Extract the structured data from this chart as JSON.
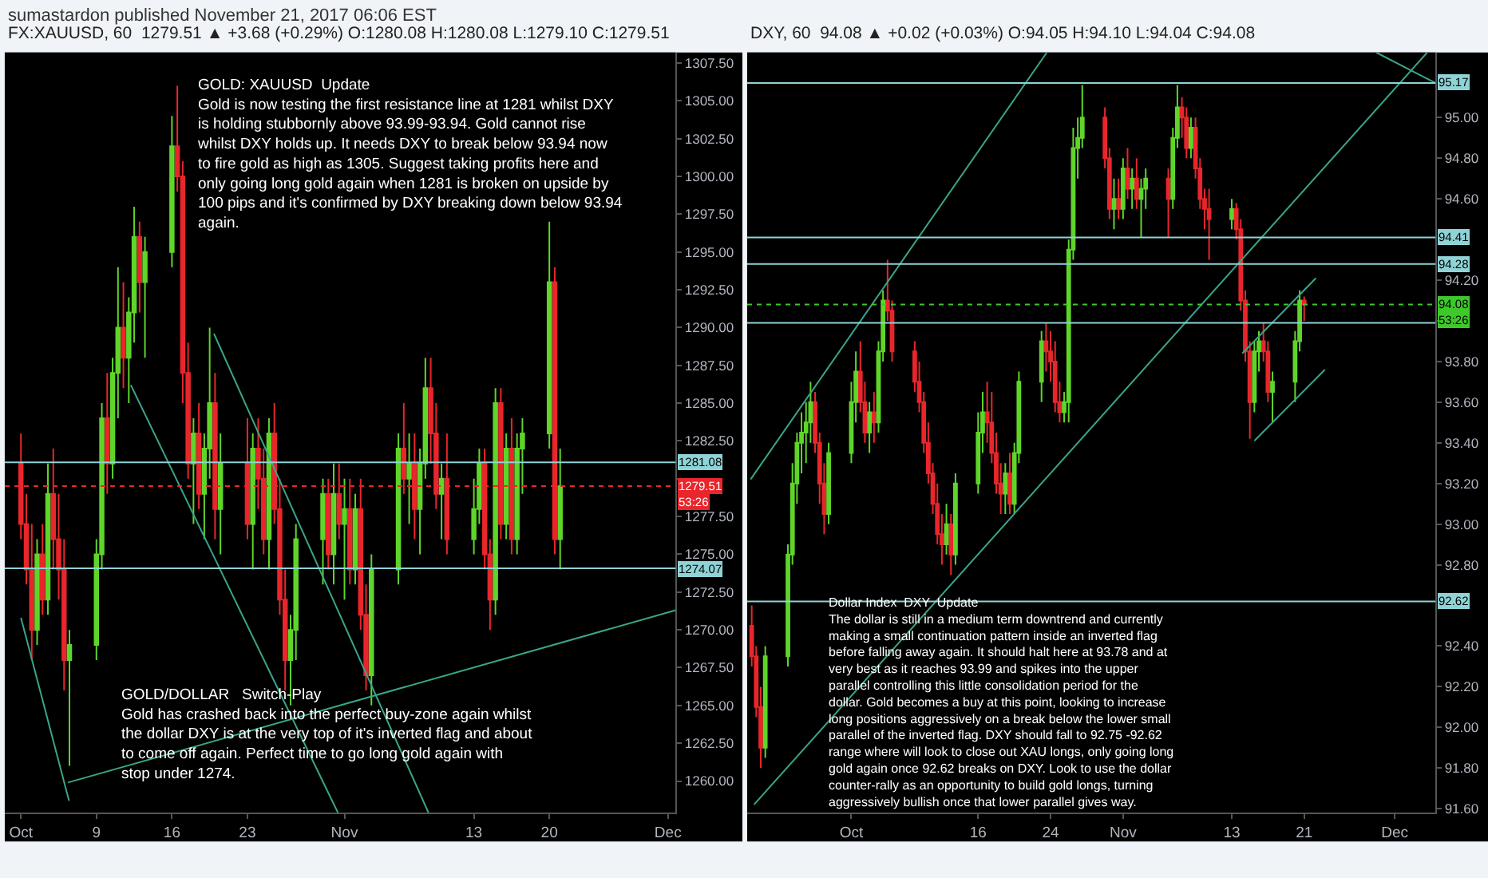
{
  "chart_data": [
    {
      "type": "candlestick",
      "title": "FX:XAUUSD, 60  1279.51 ▲ +3.68 (+0.29%) O:1280.08 H:1280.08 L:1279.10 C:1279.51",
      "annotations": [
        "sumastardon published November 21, 2017 06:06 EST",
        "GOLD: XAUUSD  Update\nGold is now testing the first resistance line at 1281 whilst DXY\nis holding stubbornly above 93.99-93.94. Gold cannot rise\nwhilst DXY holds up. It needs DXY to break below 93.94 now\nto fire gold as high as 1305. Suggest taking profits here and\nonly going long gold again when 1281 is broken on upside by\n100 pips and it's confirmed by DXY breaking down below 93.94\nagain.",
        "GOLD/DOLLAR   Switch-Play\nGold has crashed back into the perfect buy-zone again whilst\nthe dollar DXY is at the very top of it's inverted flag and about\nto come off again. Perfect time to go long gold again with\nstop under 1274.",
        "53:26"
      ],
      "xlim": [
        "2017-09-30T12:00",
        "2017-12-01T17:00"
      ],
      "xticks": [
        {
          "value": "2017-10-02",
          "label": "Oct"
        },
        {
          "value": "2017-10-09",
          "label": "9"
        },
        {
          "value": "2017-10-16",
          "label": "16"
        },
        {
          "value": "2017-10-23",
          "label": "23"
        },
        {
          "value": "2017-11-01",
          "label": "Nov"
        },
        {
          "value": "2017-11-13",
          "label": "13"
        },
        {
          "value": "2017-11-20",
          "label": "20"
        },
        {
          "value": "2017-12-01",
          "label": "Dec"
        }
      ],
      "ylim": [
        1257.9,
        1308.2
      ],
      "yticks": [
        {
          "value": 1260,
          "label": "1260.00"
        },
        {
          "value": 1262.5,
          "label": "1262.50"
        },
        {
          "value": 1265,
          "label": "1265.00"
        },
        {
          "value": 1267.5,
          "label": "1267.50"
        },
        {
          "value": 1270,
          "label": "1270.00"
        },
        {
          "value": 1272.5,
          "label": "1272.50"
        },
        {
          "value": 1275,
          "label": "1275.00"
        },
        {
          "value": 1277.5,
          "label": "1277.50"
        },
        {
          "value": 1280,
          "label": null
        },
        {
          "value": 1282.5,
          "label": "1282.50"
        },
        {
          "value": 1285,
          "label": "1285.00"
        },
        {
          "value": 1287.5,
          "label": "1287.50"
        },
        {
          "value": 1290,
          "label": "1290.00"
        },
        {
          "value": 1292.5,
          "label": "1292.50"
        },
        {
          "value": 1295,
          "label": "1295.00"
        },
        {
          "value": 1297.5,
          "label": "1297.50"
        },
        {
          "value": 1300,
          "label": "1300.00"
        },
        {
          "value": 1302.5,
          "label": "1302.50"
        },
        {
          "value": 1305,
          "label": "1305.00"
        },
        {
          "value": 1307.5,
          "label": "1307.50"
        }
      ],
      "ref_lines": [
        {
          "axis": "y",
          "value": 1281.08,
          "label": "1281.08",
          "color": "#8fd3d6"
        },
        {
          "axis": "y",
          "value": 1279.51,
          "label": "1279.51",
          "color": "#e8262b",
          "line_style": "dotted"
        },
        {
          "axis": "y",
          "value": 1274.07,
          "label": "1274.07",
          "color": "#8fd3d6"
        }
      ],
      "series": [
        {
          "type": "line",
          "color": "#3aa58a",
          "x": [
            "2017-10-02T00:00",
            "2017-10-06T11:00"
          ],
          "values": [
            1270.8,
            1258.7
          ]
        },
        {
          "type": "line",
          "color": "#3aa58a",
          "x": [
            "2017-10-12T04:30",
            "2017-10-31T09:30"
          ],
          "values": [
            1286.2,
            1257.9
          ]
        },
        {
          "type": "line",
          "color": "#3aa58a",
          "x": [
            "2017-10-19T21:30",
            "2017-11-08T19:00"
          ],
          "values": [
            1289.6,
            1257.9
          ]
        },
        {
          "type": "line",
          "color": "#3aa58a",
          "x": [
            "2017-10-06T08:40",
            "2017-12-01T17:00"
          ],
          "values": [
            1259.9,
            1271.3
          ]
        },
        {
          "colors": [
            "#e8262b",
            "#e8262b",
            "#e8262b",
            "#5fd52a",
            "#e8262b",
            "#5fd52a",
            "#e8262b",
            "#e8262b",
            "#e8262b",
            "#5fd52a",
            "#5fd52a",
            "#5fd52a",
            "#e8262b",
            "#5fd52a",
            "#5fd52a",
            "#e8262b",
            "#5fd52a",
            "#5fd52a",
            "#e8262b",
            "#5fd52a",
            "#5fd52a",
            "#e8262b",
            "#e8262b",
            "#e8262b",
            "#5fd52a",
            "#e8262b",
            "#5fd52a",
            "#5fd52a",
            "#e8262b",
            "#5fd52a",
            "#e8262b",
            "#5fd52a",
            "#e8262b",
            "#e8262b",
            "#5fd52a",
            "#e8262b",
            "#e8262b",
            "#e8262b",
            "#5fd52a",
            "#5fd52a",
            "#5fd52a",
            "#e8262b",
            "#5fd52a",
            "#e8262b",
            "#5fd52a",
            "#e8262b",
            "#5fd52a",
            "#e8262b",
            "#e8262b",
            "#5fd52a",
            "#5fd52a",
            "#e8262b",
            "#5fd52a",
            "#e8262b",
            "#5fd52a",
            "#5fd52a",
            "#e8262b",
            "#e8262b",
            "#5fd52a",
            "#e8262b",
            "#5fd52a",
            "#5fd52a",
            "#e8262b",
            "#e8262b",
            "#5fd52a",
            "#e8262b",
            "#5fd52a",
            "#e8262b",
            "#5fd52a",
            "#5fd52a",
            "#5fd52a",
            "#e8262b",
            "#5fd52a"
          ],
          "x": [
            "2017-10-02T00:00",
            "2017-10-02T12:00",
            "2017-10-03T00:00",
            "2017-10-03T12:00",
            "2017-10-04T00:00",
            "2017-10-04T12:00",
            "2017-10-05T00:00",
            "2017-10-05T12:00",
            "2017-10-06T00:00",
            "2017-10-06T12:00",
            "2017-10-09T00:00",
            "2017-10-09T12:00",
            "2017-10-10T00:00",
            "2017-10-10T12:00",
            "2017-10-11T00:00",
            "2017-10-11T12:00",
            "2017-10-12T00:00",
            "2017-10-12T12:00",
            "2017-10-13T00:00",
            "2017-10-13T12:00",
            "2017-10-16T00:00",
            "2017-10-16T12:00",
            "2017-10-17T00:00",
            "2017-10-17T12:00",
            "2017-10-18T00:00",
            "2017-10-18T12:00",
            "2017-10-19T00:00",
            "2017-10-19T12:00",
            "2017-10-20T00:00",
            "2017-10-20T12:00",
            "2017-10-23T00:00",
            "2017-10-23T12:00",
            "2017-10-24T00:00",
            "2017-10-24T12:00",
            "2017-10-25T00:00",
            "2017-10-25T12:00",
            "2017-10-26T00:00",
            "2017-10-26T12:00",
            "2017-10-27T00:00",
            "2017-10-27T12:00",
            "2017-10-30T00:00",
            "2017-10-30T12:00",
            "2017-10-31T00:00",
            "2017-10-31T12:00",
            "2017-11-01T00:00",
            "2017-11-01T12:00",
            "2017-11-02T00:00",
            "2017-11-02T12:00",
            "2017-11-03T00:00",
            "2017-11-03T12:00",
            "2017-11-06T00:00",
            "2017-11-06T12:00",
            "2017-11-07T00:00",
            "2017-11-07T12:00",
            "2017-11-08T00:00",
            "2017-11-08T12:00",
            "2017-11-09T00:00",
            "2017-11-09T12:00",
            "2017-11-10T00:00",
            "2017-11-10T12:00",
            "2017-11-13T00:00",
            "2017-11-13T12:00",
            "2017-11-14T00:00",
            "2017-11-14T12:00",
            "2017-11-15T00:00",
            "2017-11-15T12:00",
            "2017-11-16T00:00",
            "2017-11-16T12:00",
            "2017-11-17T00:00",
            "2017-11-17T12:00",
            "2017-11-20T00:00",
            "2017-11-20T12:00",
            "2017-11-21T00:00"
          ],
          "ohlc": [
            [
              1281,
              1283,
              1276,
              1277
            ],
            [
              1277,
              1279,
              1273,
              1274
            ],
            [
              1274,
              1277,
              1268,
              1270
            ],
            [
              1270,
              1276,
              1269,
              1275
            ],
            [
              1275,
              1277,
              1271,
              1272
            ],
            [
              1272,
              1281,
              1271,
              1279
            ],
            [
              1279,
              1282,
              1274,
              1276
            ],
            [
              1276,
              1279,
              1272,
              1274
            ],
            [
              1274,
              1276,
              1266,
              1268
            ],
            [
              1268,
              1270,
              1261,
              1269
            ],
            [
              1269,
              1276,
              1268,
              1275
            ],
            [
              1275,
              1285,
              1274,
              1284
            ],
            [
              1284,
              1287,
              1279,
              1281
            ],
            [
              1281,
              1288,
              1280,
              1287
            ],
            [
              1287,
              1294,
              1284,
              1290
            ],
            [
              1290,
              1293,
              1286,
              1288
            ],
            [
              1288,
              1292,
              1285,
              1291
            ],
            [
              1291,
              1298,
              1289,
              1296
            ],
            [
              1296,
              1297,
              1291,
              1293
            ],
            [
              1293,
              1296,
              1288,
              1295
            ],
            [
              1295,
              1304,
              1294,
              1302
            ],
            [
              1302,
              1306,
              1299,
              1300
            ],
            [
              1300,
              1301,
              1285,
              1287
            ],
            [
              1287,
              1289,
              1280,
              1281
            ],
            [
              1281,
              1284,
              1277,
              1283
            ],
            [
              1283,
              1285,
              1278,
              1279
            ],
            [
              1279,
              1283,
              1276,
              1282
            ],
            [
              1282,
              1290,
              1280,
              1285
            ],
            [
              1285,
              1287,
              1276,
              1278
            ],
            [
              1278,
              1283,
              1275,
              1281
            ],
            [
              1281,
              1284,
              1276,
              1277
            ],
            [
              1277,
              1283,
              1274,
              1282
            ],
            [
              1282,
              1284,
              1278,
              1280
            ],
            [
              1280,
              1282,
              1275,
              1276
            ],
            [
              1276,
              1284,
              1274,
              1283
            ],
            [
              1283,
              1285,
              1277,
              1278
            ],
            [
              1278,
              1280,
              1271,
              1272
            ],
            [
              1272,
              1274,
              1266,
              1268
            ],
            [
              1268,
              1271,
              1265,
              1270
            ],
            [
              1270,
              1277,
              1268,
              1276
            ],
            [
              1276,
              1280,
              1273,
              1279
            ],
            [
              1279,
              1280,
              1274,
              1275
            ],
            [
              1275,
              1281,
              1273,
              1279
            ],
            [
              1279,
              1281,
              1276,
              1277
            ],
            [
              1277,
              1280,
              1272,
              1278
            ],
            [
              1278,
              1280,
              1273,
              1274
            ],
            [
              1274,
              1279,
              1273,
              1278
            ],
            [
              1278,
              1280,
              1270,
              1271
            ],
            [
              1271,
              1273,
              1266,
              1267
            ],
            [
              1267,
              1275,
              1265,
              1274
            ],
            [
              1274,
              1283,
              1273,
              1282
            ],
            [
              1282,
              1285,
              1279,
              1280
            ],
            [
              1280,
              1283,
              1277,
              1281
            ],
            [
              1281,
              1283,
              1276,
              1278
            ],
            [
              1278,
              1282,
              1275,
              1281
            ],
            [
              1281,
              1288,
              1280,
              1286
            ],
            [
              1286,
              1288,
              1281,
              1283
            ],
            [
              1283,
              1285,
              1278,
              1279
            ],
            [
              1279,
              1281,
              1276,
              1280
            ],
            [
              1280,
              1283,
              1275,
              1276
            ],
            [
              1276,
              1280,
              1275,
              1278
            ],
            [
              1278,
              1282,
              1277,
              1281
            ],
            [
              1281,
              1282,
              1274,
              1275
            ],
            [
              1275,
              1276,
              1270,
              1272
            ],
            [
              1272,
              1286,
              1271,
              1285
            ],
            [
              1285,
              1286,
              1276,
              1277
            ],
            [
              1277,
              1283,
              1276,
              1282
            ],
            [
              1282,
              1284,
              1275,
              1276
            ],
            [
              1276,
              1283,
              1275,
              1282
            ],
            [
              1282,
              1284,
              1279,
              1283
            ],
            [
              1283,
              1297,
              1282,
              1293
            ],
            [
              1293,
              1294,
              1275,
              1276
            ],
            [
              1276,
              1282,
              1274,
              1279.51
            ]
          ]
        }
      ]
    },
    {
      "type": "candlestick",
      "title": "DXY, 60  94.08 ▲ +0.02 (+0.03%) O:94.05 H:94.10 L:94.04 C:94.08",
      "annotations": [
        "Dollar Index  DXY  Update\nThe dollar is still in a medium term downtrend and currently\nmaking a small continuation pattern inside an inverted flag\nbefore falling away again. It should halt here at 93.78 and at\nvery best as it reaches 93.99 and spikes into the upper\nparallel controlling this little consolidation period for the\ndollar. Gold becomes a buy at this point, looking to increase\nlong positions aggressively on a break below the lower small\nparallel of the inverted flag. DXY should fall to 92.75 -92.62\nrange where will look to close out XAU longs, only going long\ngold again once 92.62 breaks on DXY. Look to use the dollar\ncounter-rally as an opportunity to build gold longs, turning\naggressively bullish once that lower parallel gives way.",
        "53:26"
      ],
      "xlim": [
        "2017-09-20T12:00",
        "2017-12-05T12:00"
      ],
      "xticks": [
        {
          "value": "2017-10-02",
          "label": "Oct"
        },
        {
          "value": "2017-10-16",
          "label": "16"
        },
        {
          "value": "2017-10-24",
          "label": "24"
        },
        {
          "value": "2017-11-01",
          "label": "Nov"
        },
        {
          "value": "2017-11-13",
          "label": "13"
        },
        {
          "value": "2017-11-21",
          "label": "21"
        },
        {
          "value": "2017-12-01",
          "label": "Dec"
        }
      ],
      "ylim": [
        91.58,
        95.32
      ],
      "yticks": [
        {
          "value": 91.6,
          "label": "91.60"
        },
        {
          "value": 91.8,
          "label": "91.80"
        },
        {
          "value": 92.0,
          "label": "92.00"
        },
        {
          "value": 92.2,
          "label": "92.20"
        },
        {
          "value": 92.4,
          "label": "92.40"
        },
        {
          "value": 92.8,
          "label": "92.80"
        },
        {
          "value": 93.0,
          "label": "93.00"
        },
        {
          "value": 93.2,
          "label": "93.20"
        },
        {
          "value": 93.4,
          "label": "93.40"
        },
        {
          "value": 93.6,
          "label": "93.60"
        },
        {
          "value": 93.8,
          "label": "93.80"
        },
        {
          "value": 94.0,
          "label": null
        },
        {
          "value": 94.2,
          "label": "94.20"
        },
        {
          "value": 94.6,
          "label": "94.60"
        },
        {
          "value": 94.8,
          "label": "94.80"
        },
        {
          "value": 95.0,
          "label": "95.00"
        }
      ],
      "ref_lines": [
        {
          "axis": "y",
          "value": 95.17,
          "label": "95.17",
          "color": "#8fd3d6"
        },
        {
          "axis": "y",
          "value": 94.41,
          "label": "94.41",
          "color": "#8fd3d6"
        },
        {
          "axis": "y",
          "value": 94.28,
          "label": "94.28",
          "color": "#8fd3d6"
        },
        {
          "axis": "y",
          "value": 94.08,
          "label": "94.08",
          "color": "#3ec92a",
          "line_style": "dotted"
        },
        {
          "axis": "y",
          "value": 93.99,
          "label": null,
          "color": "#8fd3d6"
        },
        {
          "axis": "y",
          "value": 92.62,
          "label": "92.62",
          "color": "#8fd3d6"
        }
      ],
      "series": [
        {
          "type": "line",
          "color": "#3aa58a",
          "x": [
            "2017-09-20T21:00",
            "2017-10-23T14:00"
          ],
          "values": [
            93.22,
            95.32
          ]
        },
        {
          "type": "line",
          "color": "#3aa58a",
          "x": [
            "2017-09-21T06:00",
            "2017-12-04T14:00"
          ],
          "values": [
            91.62,
            95.32
          ]
        },
        {
          "type": "line",
          "color": "#3aa58a",
          "x": [
            "2017-11-28T23:00",
            "2017-12-05T12:00"
          ],
          "values": [
            95.32,
            95.17
          ]
        },
        {
          "type": "line",
          "color": "#3aa58a",
          "x": [
            "2017-11-14T04:00",
            "2017-11-22T07:00"
          ],
          "values": [
            93.84,
            94.21
          ]
        },
        {
          "type": "line",
          "color": "#3aa58a",
          "x": [
            "2017-11-15T12:00",
            "2017-11-23T07:00"
          ],
          "values": [
            93.41,
            93.76
          ]
        },
        {
          "colors": [
            "#e8262b",
            "#e8262b",
            "#e8262b",
            "#5fd52a",
            "#5fd52a",
            "#5fd52a",
            "#5fd52a",
            "#5fd52a",
            "#5fd52a",
            "#5fd52a",
            "#e8262b",
            "#e8262b",
            "#e8262b",
            "#5fd52a",
            "#5fd52a",
            "#5fd52a",
            "#e8262b",
            "#e8262b",
            "#5fd52a",
            "#e8262b",
            "#5fd52a",
            "#5fd52a",
            "#e8262b",
            "#e8262b",
            "#e8262b",
            "#e8262b",
            "#e8262b",
            "#e8262b",
            "#e8262b",
            "#e8262b",
            "#e8262b",
            "#5fd52a",
            "#e8262b",
            "#5fd52a",
            "#5fd52a",
            "#5fd52a",
            "#e8262b",
            "#e8262b",
            "#e8262b",
            "#e8262b",
            "#5fd52a",
            "#e8262b",
            "#5fd52a",
            "#5fd52a",
            "#5fd52a",
            "#e8262b",
            "#e8262b",
            "#e8262b",
            "#e8262b",
            "#5fd52a",
            "#5fd52a",
            "#5fd52a",
            "#5fd52a",
            "#5fd52a",
            "#e8262b",
            "#e8262b",
            "#5fd52a",
            "#e8262b",
            "#5fd52a",
            "#e8262b",
            "#5fd52a",
            "#e8262b",
            "#5fd52a",
            "#5fd52a",
            "#e8262b",
            "#5fd52a",
            "#5fd52a",
            "#e8262b",
            "#e8262b",
            "#5fd52a",
            "#e8262b",
            "#e8262b",
            "#e8262b",
            "#e8262b",
            "#5fd52a",
            "#e8262b",
            "#e8262b",
            "#e8262b",
            "#e8262b",
            "#5fd52a",
            "#5fd52a",
            "#e8262b",
            "#e8262b",
            "#5fd52a",
            "#5fd52a",
            "#5fd52a",
            "#e8262b"
          ],
          "x": [
            "2017-09-21T00:00",
            "2017-09-21T12:00",
            "2017-09-22T00:00",
            "2017-09-22T12:00",
            "2017-09-25T00:00",
            "2017-09-25T12:00",
            "2017-09-26T00:00",
            "2017-09-26T12:00",
            "2017-09-27T00:00",
            "2017-09-27T12:00",
            "2017-09-28T00:00",
            "2017-09-28T12:00",
            "2017-09-29T00:00",
            "2017-09-29T12:00",
            "2017-10-02T00:00",
            "2017-10-02T12:00",
            "2017-10-03T00:00",
            "2017-10-03T12:00",
            "2017-10-04T00:00",
            "2017-10-04T12:00",
            "2017-10-05T00:00",
            "2017-10-05T12:00",
            "2017-10-06T00:00",
            "2017-10-06T12:00",
            "2017-10-09T00:00",
            "2017-10-09T12:00",
            "2017-10-10T00:00",
            "2017-10-10T12:00",
            "2017-10-11T00:00",
            "2017-10-11T12:00",
            "2017-10-12T00:00",
            "2017-10-12T12:00",
            "2017-10-13T00:00",
            "2017-10-13T12:00",
            "2017-10-16T00:00",
            "2017-10-16T12:00",
            "2017-10-17T00:00",
            "2017-10-17T12:00",
            "2017-10-18T00:00",
            "2017-10-18T12:00",
            "2017-10-19T00:00",
            "2017-10-19T12:00",
            "2017-10-20T00:00",
            "2017-10-20T12:00",
            "2017-10-23T00:00",
            "2017-10-23T12:00",
            "2017-10-24T00:00",
            "2017-10-24T12:00",
            "2017-10-25T00:00",
            "2017-10-25T12:00",
            "2017-10-26T00:00",
            "2017-10-26T12:00",
            "2017-10-27T00:00",
            "2017-10-27T12:00",
            "2017-10-30T00:00",
            "2017-10-30T12:00",
            "2017-10-31T00:00",
            "2017-10-31T12:00",
            "2017-11-01T00:00",
            "2017-11-01T12:00",
            "2017-11-02T00:00",
            "2017-11-02T12:00",
            "2017-11-03T00:00",
            "2017-11-03T12:00",
            "2017-11-06T00:00",
            "2017-11-06T12:00",
            "2017-11-07T00:00",
            "2017-11-07T12:00",
            "2017-11-08T00:00",
            "2017-11-08T12:00",
            "2017-11-09T00:00",
            "2017-11-09T12:00",
            "2017-11-10T00:00",
            "2017-11-10T12:00",
            "2017-11-13T00:00",
            "2017-11-13T12:00",
            "2017-11-14T00:00",
            "2017-11-14T12:00",
            "2017-11-15T00:00",
            "2017-11-15T12:00",
            "2017-11-16T00:00",
            "2017-11-16T12:00",
            "2017-11-17T00:00",
            "2017-11-17T12:00",
            "2017-11-20T00:00",
            "2017-11-20T12:00",
            "2017-11-21T00:00"
          ],
          "ohlc": [
            [
              92.5,
              92.6,
              92.3,
              92.35
            ],
            [
              92.35,
              92.4,
              92.05,
              92.1
            ],
            [
              92.1,
              92.2,
              91.8,
              91.9
            ],
            [
              91.9,
              92.4,
              91.85,
              92.35
            ],
            [
              92.35,
              92.9,
              92.3,
              92.85
            ],
            [
              92.85,
              93.3,
              92.8,
              93.2
            ],
            [
              93.2,
              93.45,
              93.1,
              93.4
            ],
            [
              93.4,
              93.55,
              93.25,
              93.45
            ],
            [
              93.45,
              93.6,
              93.3,
              93.5
            ],
            [
              93.5,
              93.7,
              93.4,
              93.6
            ],
            [
              93.6,
              93.65,
              93.35,
              93.4
            ],
            [
              93.4,
              93.45,
              93.1,
              93.2
            ],
            [
              93.2,
              93.3,
              92.95,
              93.05
            ],
            [
              93.05,
              93.4,
              93.0,
              93.35
            ],
            [
              93.35,
              93.7,
              93.3,
              93.6
            ],
            [
              93.6,
              93.85,
              93.5,
              93.75
            ],
            [
              93.75,
              93.9,
              93.55,
              93.6
            ],
            [
              93.6,
              93.7,
              93.4,
              93.45
            ],
            [
              93.45,
              93.6,
              93.35,
              93.55
            ],
            [
              93.55,
              93.65,
              93.4,
              93.5
            ],
            [
              93.5,
              93.9,
              93.45,
              93.85
            ],
            [
              93.85,
              94.15,
              93.8,
              94.1
            ],
            [
              94.1,
              94.3,
              94.0,
              94.05
            ],
            [
              94.05,
              94.1,
              93.8,
              93.85
            ],
            [
              93.85,
              93.9,
              93.65,
              93.7
            ],
            [
              93.7,
              93.8,
              93.55,
              93.6
            ],
            [
              93.6,
              93.65,
              93.35,
              93.4
            ],
            [
              93.4,
              93.5,
              93.2,
              93.25
            ],
            [
              93.25,
              93.3,
              93.05,
              93.1
            ],
            [
              93.1,
              93.2,
              92.9,
              92.95
            ],
            [
              92.95,
              93.05,
              92.8,
              92.9
            ],
            [
              92.9,
              93.1,
              92.85,
              93.0
            ],
            [
              93.0,
              93.05,
              92.75,
              92.85
            ],
            [
              92.85,
              93.25,
              92.8,
              93.2
            ],
            [
              93.2,
              93.55,
              93.15,
              93.45
            ],
            [
              93.45,
              93.65,
              93.35,
              93.55
            ],
            [
              93.55,
              93.7,
              93.4,
              93.5
            ],
            [
              93.5,
              93.65,
              93.3,
              93.35
            ],
            [
              93.35,
              93.45,
              93.15,
              93.2
            ],
            [
              93.2,
              93.3,
              93.05,
              93.15
            ],
            [
              93.15,
              93.3,
              93.05,
              93.25
            ],
            [
              93.25,
              93.35,
              93.05,
              93.1
            ],
            [
              93.1,
              93.4,
              93.05,
              93.35
            ],
            [
              93.35,
              93.75,
              93.3,
              93.7
            ],
            [
              93.7,
              93.95,
              93.6,
              93.9
            ],
            [
              93.9,
              93.99,
              93.75,
              93.85
            ],
            [
              93.85,
              93.95,
              93.7,
              93.8
            ],
            [
              93.8,
              93.9,
              93.55,
              93.6
            ],
            [
              93.6,
              93.7,
              93.5,
              93.55
            ],
            [
              93.55,
              93.65,
              93.5,
              93.6
            ],
            [
              93.6,
              94.4,
              93.5,
              94.35
            ],
            [
              94.35,
              94.95,
              94.3,
              94.85
            ],
            [
              94.85,
              95.0,
              94.7,
              94.9
            ],
            [
              94.9,
              95.16,
              94.85,
              95.0
            ],
            [
              95.0,
              95.05,
              94.75,
              94.8
            ],
            [
              94.8,
              94.85,
              94.5,
              94.55
            ],
            [
              94.55,
              94.7,
              94.45,
              94.6
            ],
            [
              94.6,
              94.7,
              94.5,
              94.55
            ],
            [
              94.55,
              94.8,
              94.5,
              94.75
            ],
            [
              94.75,
              94.85,
              94.6,
              94.65
            ],
            [
              94.65,
              94.75,
              94.55,
              94.7
            ],
            [
              94.7,
              94.8,
              94.55,
              94.6
            ],
            [
              94.6,
              94.7,
              94.41,
              94.65
            ],
            [
              94.65,
              94.75,
              94.55,
              94.7
            ],
            [
              94.7,
              94.75,
              94.41,
              94.6
            ],
            [
              94.6,
              94.95,
              94.55,
              94.9
            ],
            [
              94.9,
              95.16,
              94.85,
              95.05
            ],
            [
              95.05,
              95.1,
              94.9,
              95.0
            ],
            [
              95.0,
              95.05,
              94.8,
              94.85
            ],
            [
              94.85,
              95.0,
              94.8,
              94.95
            ],
            [
              94.95,
              95.0,
              94.7,
              94.75
            ],
            [
              94.75,
              94.8,
              94.55,
              94.6
            ],
            [
              94.6,
              94.65,
              94.45,
              94.55
            ],
            [
              94.55,
              94.65,
              94.3,
              94.5
            ],
            [
              94.5,
              94.6,
              94.45,
              94.55
            ],
            [
              94.55,
              94.58,
              94.4,
              94.45
            ],
            [
              94.45,
              94.5,
              94.05,
              94.1
            ],
            [
              94.1,
              94.15,
              93.8,
              93.85
            ],
            [
              93.85,
              93.9,
              93.42,
              93.6
            ],
            [
              93.6,
              93.9,
              93.55,
              93.85
            ],
            [
              93.85,
              93.95,
              93.75,
              93.9
            ],
            [
              93.9,
              93.99,
              93.8,
              93.85
            ],
            [
              93.85,
              93.9,
              93.6,
              93.65
            ],
            [
              93.65,
              93.75,
              93.5,
              93.7
            ],
            [
              93.7,
              93.95,
              93.6,
              93.9
            ],
            [
              93.9,
              94.15,
              93.85,
              94.1
            ],
            [
              94.1,
              94.12,
              94.0,
              94.08
            ]
          ]
        }
      ]
    }
  ]
}
